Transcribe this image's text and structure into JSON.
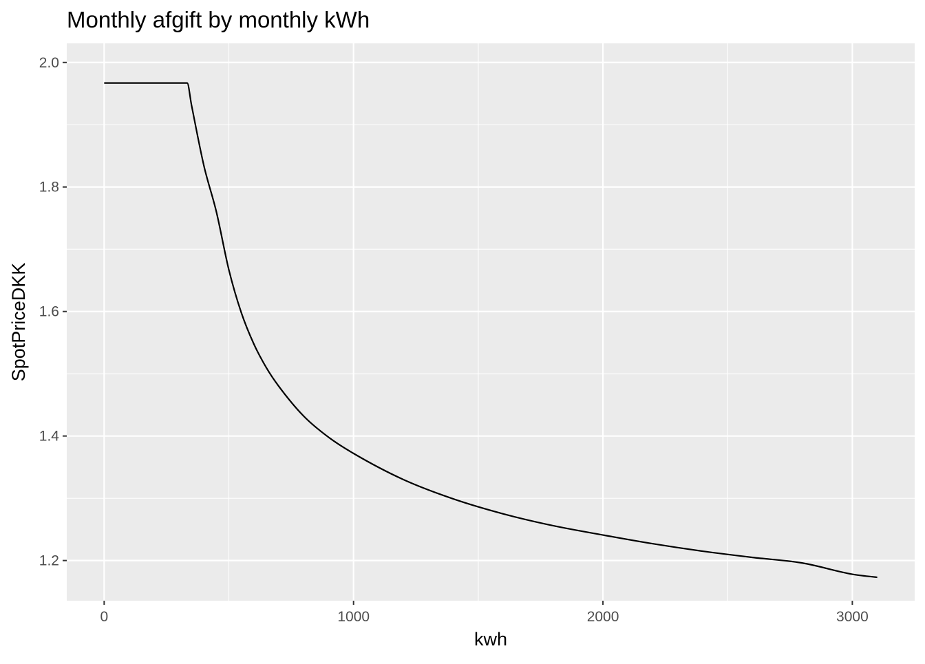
{
  "chart_data": {
    "type": "line",
    "title": "Monthly afgift by monthly kWh",
    "xlabel": "kwh",
    "ylabel": "SpotPriceDKK",
    "xlim": [
      -150,
      3250
    ],
    "ylim": [
      1.1355,
      2.0307
    ],
    "x_ticks": [
      0,
      1000,
      2000,
      3000
    ],
    "x_tick_labels": [
      "0",
      "1000",
      "2000",
      "3000"
    ],
    "y_ticks": [
      1.2,
      1.4,
      1.6,
      1.8,
      2.0
    ],
    "y_tick_labels": [
      "1.2",
      "1.4",
      "1.6",
      "1.8",
      "2.0"
    ],
    "grid": true,
    "panel_background": "#ebebeb",
    "grid_color": "#ffffff",
    "line_color": "#000000",
    "series": [
      {
        "x": [
          0,
          100,
          200,
          333,
          350,
          400,
          450,
          500,
          550,
          600,
          650,
          700,
          800,
          900,
          1000,
          1200,
          1400,
          1600,
          1800,
          2000,
          2200,
          2400,
          2600,
          2800,
          3000,
          3100
        ],
        "y": [
          1.967,
          1.967,
          1.967,
          1.967,
          1.932,
          1.834,
          1.76,
          1.667,
          1.598,
          1.548,
          1.51,
          1.48,
          1.432,
          1.398,
          1.372,
          1.33,
          1.299,
          1.275,
          1.256,
          1.241,
          1.227,
          1.215,
          1.205,
          1.196,
          1.178,
          1.173
        ]
      }
    ]
  }
}
